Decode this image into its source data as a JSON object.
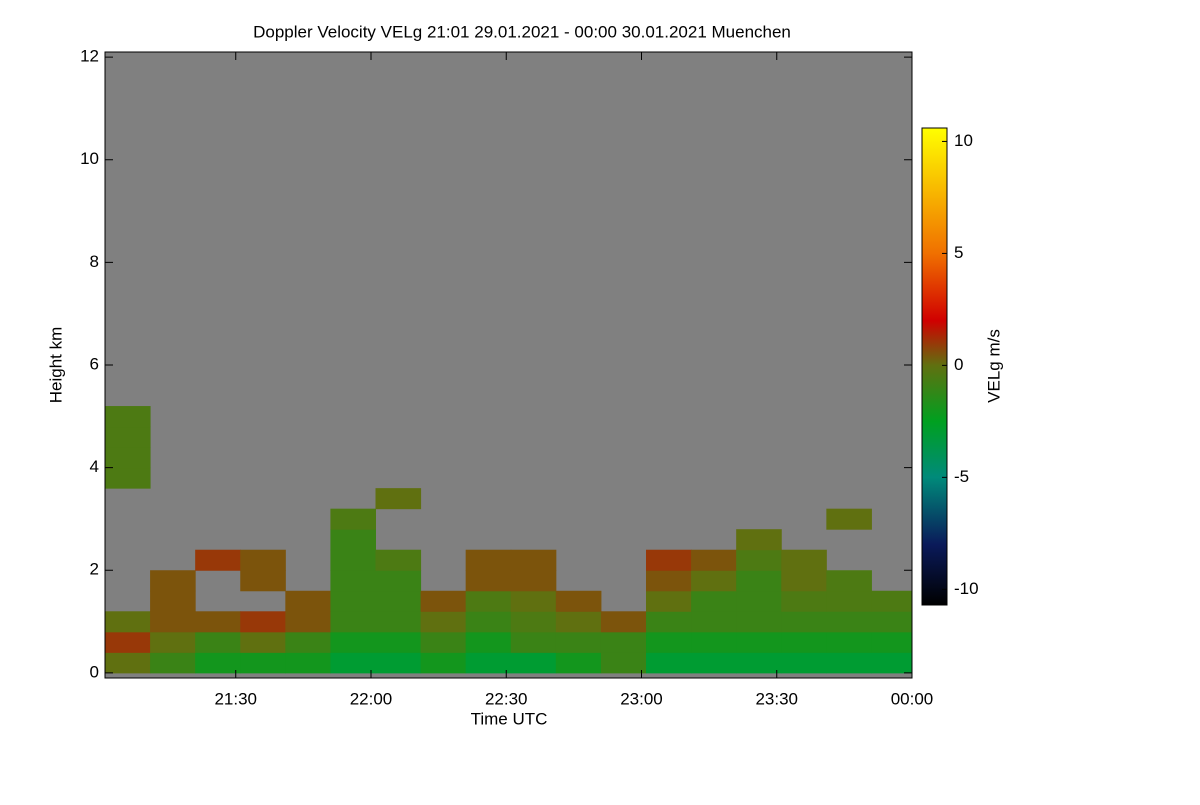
{
  "chart_data": {
    "type": "heatmap",
    "title": "Doppler Velocity VELg   21:01 29.01.2021 - 00:00 30.01.2021 Muenchen",
    "xlabel": "Time UTC",
    "ylabel": "Height km",
    "colorbar_label": "VELg m/s",
    "xlim": [
      1,
      180
    ],
    "xticks": [
      {
        "value": 30,
        "label": "21:30"
      },
      {
        "value": 60,
        "label": "22:00"
      },
      {
        "value": 90,
        "label": "22:30"
      },
      {
        "value": 120,
        "label": "23:00"
      },
      {
        "value": 150,
        "label": "23:30"
      },
      {
        "value": 180,
        "label": "00:00"
      }
    ],
    "ylim": [
      -0.1,
      12.1
    ],
    "yticks": [
      0,
      2,
      4,
      6,
      8,
      10,
      12
    ],
    "zlim": [
      -10.7,
      10.6
    ],
    "zticks": [
      -10,
      -5,
      0,
      5,
      10
    ],
    "background": "#808080",
    "colorscale": [
      [
        -10.7,
        "#000000"
      ],
      [
        -8,
        "#0a1a5a"
      ],
      [
        -5,
        "#008a7a"
      ],
      [
        -2.5,
        "#00a020"
      ],
      [
        0,
        "#607010"
      ],
      [
        2,
        "#d00000"
      ],
      [
        5,
        "#f07000"
      ],
      [
        10.6,
        "#ffff00"
      ]
    ],
    "x": [
      6,
      16,
      26,
      36,
      46,
      56,
      66,
      76,
      86,
      96,
      106,
      116,
      126,
      136,
      146,
      156,
      166,
      176
    ],
    "y": [
      0.2,
      0.6,
      1.0,
      1.4,
      1.8,
      2.2,
      2.6,
      3.0,
      3.4,
      3.8,
      4.2,
      4.6,
      5.0
    ],
    "z": [
      [
        0,
        -1,
        -2,
        -2,
        -2,
        -3,
        -3,
        -2,
        -3,
        -3,
        -2,
        -1,
        -3,
        -3,
        -3,
        -3,
        -3,
        -3
      ],
      [
        1,
        0,
        -1,
        0,
        -1,
        -2,
        -2,
        -1,
        -2,
        -1,
        -1,
        -1,
        -2,
        -2,
        -2,
        -2,
        -2,
        -2
      ],
      [
        0,
        0.5,
        0.5,
        1,
        0.5,
        -1,
        -1,
        0,
        -1,
        -0.5,
        0,
        0.5,
        -1,
        -1,
        -1,
        -1,
        -1,
        -1
      ],
      [
        null,
        0.5,
        null,
        null,
        0.5,
        -1,
        -1,
        0.5,
        -0.5,
        0,
        0.5,
        null,
        0,
        -1,
        -1,
        -0.5,
        -0.5,
        -0.5
      ],
      [
        null,
        0.5,
        null,
        0.5,
        null,
        -1,
        -1,
        null,
        0.5,
        0.5,
        null,
        null,
        0.5,
        0,
        -1,
        0,
        -0.5,
        null
      ],
      [
        null,
        null,
        1,
        0.5,
        null,
        -1,
        -0.5,
        null,
        0.5,
        0.5,
        null,
        null,
        1,
        0.5,
        -0.5,
        0,
        null,
        null
      ],
      [
        null,
        null,
        null,
        null,
        null,
        -1,
        null,
        null,
        null,
        null,
        null,
        null,
        null,
        null,
        0,
        null,
        null,
        null
      ],
      [
        null,
        null,
        null,
        null,
        null,
        -0.5,
        null,
        null,
        null,
        null,
        null,
        null,
        null,
        null,
        null,
        null,
        0,
        null
      ],
      [
        null,
        null,
        null,
        null,
        null,
        null,
        0,
        null,
        null,
        null,
        null,
        null,
        null,
        null,
        null,
        null,
        null,
        null
      ],
      [
        -0.5,
        null,
        null,
        null,
        null,
        null,
        null,
        null,
        null,
        null,
        null,
        null,
        null,
        null,
        null,
        null,
        null,
        null
      ],
      [
        -0.5,
        null,
        null,
        null,
        null,
        null,
        null,
        null,
        null,
        null,
        null,
        null,
        null,
        null,
        null,
        null,
        null,
        null
      ],
      [
        -0.5,
        null,
        null,
        null,
        null,
        null,
        null,
        null,
        null,
        null,
        null,
        null,
        null,
        null,
        null,
        null,
        null,
        null
      ],
      [
        -0.5,
        null,
        null,
        null,
        null,
        null,
        null,
        null,
        null,
        null,
        null,
        null,
        null,
        null,
        null,
        null,
        null,
        null
      ]
    ]
  }
}
